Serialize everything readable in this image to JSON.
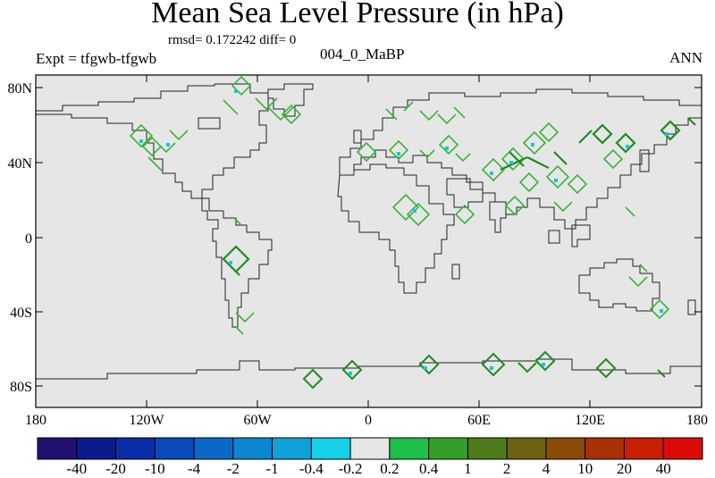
{
  "title": "Mean Sea Level Pressure (in hPa)",
  "stats": "rmsd= 0.172242 diff= 0",
  "experiment": "Expt = tfgwb-tfgwb",
  "case_name": "004_0_MaBP",
  "season": "ANN",
  "lat_axis": {
    "ticks": [
      "80N",
      "40N",
      "0",
      "40S",
      "80S"
    ]
  },
  "lon_axis": {
    "ticks": [
      "180",
      "120W",
      "60W",
      "0",
      "60E",
      "120E",
      "180"
    ]
  },
  "colors": {
    "background_field": "#e6e6e6",
    "contour_dark": "#1e8c1e",
    "contour_light": "#3cb43c",
    "contour_cyan": "#10c8e0"
  },
  "colorbar": {
    "labels": [
      "-40",
      "-20",
      "-10",
      "-4",
      "-2",
      "-1",
      "-0.4",
      "-0.2",
      "0.2",
      "0.4",
      "1",
      "2",
      "4",
      "10",
      "20",
      "40"
    ],
    "colors": [
      "#22106e",
      "#0d1a8c",
      "#0a2ea8",
      "#0a4aba",
      "#0c68c6",
      "#0c86cf",
      "#12a2da",
      "#14d0e8",
      "#e6e6e6",
      "#1ebe4a",
      "#32a028",
      "#4f7a1c",
      "#6b6212",
      "#8a4a08",
      "#a83004",
      "#c81e02",
      "#dd0a0a"
    ]
  }
}
